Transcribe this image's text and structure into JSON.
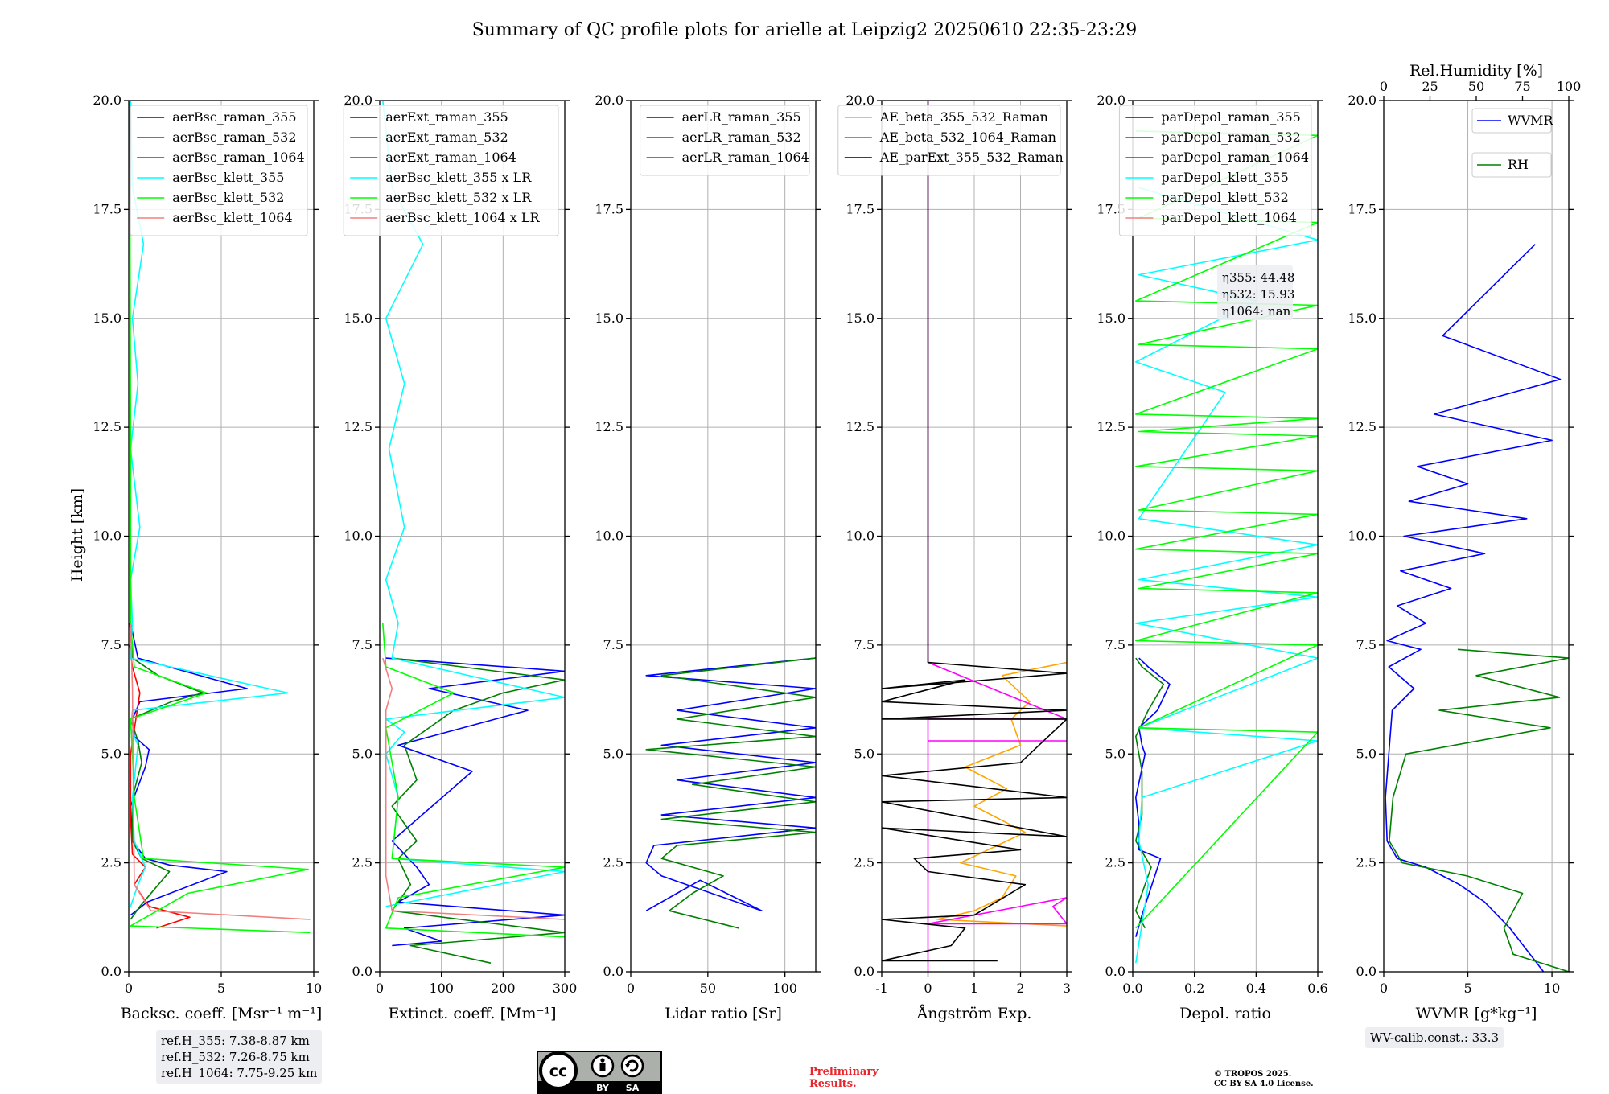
{
  "figure_title": "Summary of QC profile plots for arielle at Leipzig2 20250610 22:35-23:29",
  "y_axis_label": "Height [km]",
  "ref_heights": [
    "ref.H_355: 7.38-8.87 km",
    "ref.H_532: 7.26-8.75 km",
    "ref.H_1064: 7.75-9.25 km"
  ],
  "wv_calib_text": "WV-calib.const.: 33.3",
  "license_badge": {
    "by": "BY",
    "sa": "SA"
  },
  "preliminary_text": [
    "Preliminary",
    "Results."
  ],
  "copyright_text": [
    "© TROPOS 2025.",
    "CC BY SA 4.0 License."
  ],
  "depol_stats": [
    "η355: 44.48",
    "η532: 15.93",
    "η1064: nan"
  ],
  "colors": {
    "blue": "#0000ff",
    "green": "#008000",
    "red": "#ff0000",
    "cyan": "#00ffff",
    "lime": "#00ff00",
    "salmon": "#f08080",
    "orange": "#ffa500",
    "magenta": "#ff00ff",
    "black": "#000000"
  },
  "chart_data": [
    {
      "type": "line",
      "id": "backscatter",
      "xlabel": "Backsc. coeff. [Msr⁻¹ m⁻¹]",
      "ylabel": "Height [km]",
      "xlim": [
        0,
        10
      ],
      "ylim": [
        0,
        20
      ],
      "xticks": [
        0,
        5,
        10
      ],
      "yticks": [
        0,
        2.5,
        5,
        7.5,
        10,
        12.5,
        15,
        17.5,
        20
      ],
      "legend_position": "top-right",
      "series": [
        {
          "name": "aerBsc_raman_355",
          "color": "#0000ff",
          "x": [
            0.1,
            1.0,
            5.3,
            2.2,
            0.9,
            0.2,
            0.1,
            0.9,
            1.1,
            0.3,
            0.2,
            0.6,
            6.4,
            3.0,
            0.5,
            0.1
          ],
          "y": [
            1.3,
            1.6,
            2.3,
            2.45,
            2.6,
            3.0,
            3.8,
            4.7,
            5.1,
            5.4,
            5.8,
            6.2,
            6.5,
            6.9,
            7.2,
            8.0
          ]
        },
        {
          "name": "aerBsc_raman_532",
          "color": "#008000",
          "x": [
            0.1,
            0.6,
            2.2,
            0.7,
            0.2,
            0.2,
            0.7,
            0.5,
            0.1,
            2.3,
            4.0,
            1.6,
            0.2,
            0.05
          ],
          "y": [
            1.2,
            1.5,
            2.3,
            2.6,
            3.0,
            4.0,
            4.8,
            5.3,
            5.8,
            6.2,
            6.4,
            6.8,
            7.2,
            8.0
          ]
        },
        {
          "name": "aerBsc_raman_1064",
          "color": "#ff0000",
          "x": [
            1.5,
            3.3,
            1.1,
            0.3,
            0.9,
            0.2,
            0.1,
            0.1,
            0.6,
            0.2,
            0.05
          ],
          "y": [
            1.0,
            1.25,
            1.5,
            2.0,
            2.4,
            2.7,
            3.5,
            5.0,
            6.4,
            7.0,
            7.5
          ]
        },
        {
          "name": "aerBsc_klett_355",
          "color": "#00ffff",
          "x": [
            0.1,
            0.5,
            0.9,
            0.3,
            0.2,
            0.5,
            0.1,
            0.2,
            8.6,
            0.1,
            0.2,
            0.1,
            0.6,
            0.1,
            0.5,
            0.2,
            0.8,
            0.2,
            0.1
          ],
          "y": [
            1.5,
            2.0,
            2.4,
            3.0,
            4.0,
            5.2,
            5.6,
            6.0,
            6.4,
            7.2,
            8.0,
            9.0,
            10.2,
            12.0,
            13.5,
            15.0,
            16.7,
            18.0,
            20.0
          ]
        },
        {
          "name": "aerBsc_klett_532",
          "color": "#00ff00",
          "x": [
            9.8,
            0.1,
            3.2,
            9.7,
            0.8,
            0.3,
            0.2,
            0.1,
            4.2,
            0.3,
            0.1,
            0.1,
            0.05
          ],
          "y": [
            0.9,
            1.05,
            1.8,
            2.35,
            2.6,
            4.0,
            5.0,
            5.8,
            6.4,
            7.0,
            8.0,
            12.0,
            20.0
          ]
        },
        {
          "name": "aerBsc_klett_1064",
          "color": "#f08080",
          "x": [
            9.8,
            1.2,
            0.3,
            0.2,
            0.1
          ],
          "y": [
            1.2,
            1.4,
            2.0,
            6.5,
            8.0
          ]
        }
      ]
    },
    {
      "type": "line",
      "id": "extinction",
      "xlabel": "Extinct. coeff. [Mm⁻¹]",
      "ylabel": "",
      "xlim": [
        0,
        300
      ],
      "ylim": [
        0,
        20
      ],
      "xticks": [
        0,
        100,
        200,
        300
      ],
      "yticks": [
        0,
        2.5,
        5,
        7.5,
        10,
        12.5,
        15,
        17.5,
        20
      ],
      "legend_position": "top-right",
      "series": [
        {
          "name": "aerExt_raman_355",
          "color": "#0000ff",
          "x": [
            20,
            100,
            40,
            300,
            30,
            80,
            60,
            20,
            150,
            30,
            240,
            80,
            300,
            10
          ],
          "y": [
            0.6,
            0.7,
            1.0,
            1.3,
            1.6,
            2.0,
            2.4,
            3.0,
            4.6,
            5.2,
            6.0,
            6.5,
            6.9,
            7.2
          ]
        },
        {
          "name": "aerExt_raman_532",
          "color": "#008000",
          "x": [
            180,
            50,
            300,
            20,
            50,
            30,
            60,
            20,
            60,
            40,
            120,
            200,
            300,
            20
          ],
          "y": [
            0.2,
            0.6,
            0.9,
            1.4,
            2.0,
            2.6,
            3.0,
            3.8,
            4.4,
            5.2,
            6.0,
            6.4,
            6.7,
            7.2
          ]
        },
        {
          "name": "aerExt_raman_1064",
          "color": "#ff0000",
          "x": [],
          "y": []
        },
        {
          "name": "aerBsc_klett_355 x LR",
          "color": "#00ffff",
          "x": [
            10,
            300,
            20,
            30,
            10,
            40,
            10,
            300,
            20,
            30,
            10,
            40,
            15,
            40,
            10,
            70,
            20,
            5
          ],
          "y": [
            1.5,
            2.3,
            2.6,
            4.0,
            5.0,
            5.5,
            5.8,
            6.3,
            7.2,
            8.0,
            9.0,
            10.2,
            12.0,
            13.5,
            15.0,
            16.7,
            18.0,
            20.0
          ]
        },
        {
          "name": "aerBsc_klett_532 x LR",
          "color": "#00ff00",
          "x": [
            300,
            10,
            30,
            300,
            20,
            30,
            10,
            120,
            10,
            5
          ],
          "y": [
            0.8,
            1.0,
            1.7,
            2.4,
            2.6,
            4.0,
            5.6,
            6.4,
            7.0,
            8.0
          ]
        },
        {
          "name": "aerBsc_klett_1064 x LR",
          "color": "#f08080",
          "x": [
            300,
            20,
            10,
            10,
            20,
            5
          ],
          "y": [
            1.2,
            1.4,
            2.2,
            6.0,
            6.5,
            7.2
          ]
        }
      ]
    },
    {
      "type": "line",
      "id": "lidar_ratio",
      "xlabel": "Lidar ratio [Sr]",
      "ylabel": "",
      "xlim": [
        0,
        120
      ],
      "ylim": [
        0,
        20
      ],
      "xticks": [
        0,
        50,
        100
      ],
      "yticks": [
        0,
        2.5,
        5,
        7.5,
        10,
        12.5,
        15,
        17.5,
        20
      ],
      "legend_position": "top-right",
      "series": [
        {
          "name": "aerLR_raman_355",
          "color": "#0000ff",
          "x": [
            10,
            30,
            45,
            85,
            20,
            10,
            15,
            120,
            20,
            120,
            30,
            120,
            20,
            120,
            30,
            120,
            10,
            120
          ],
          "y": [
            1.4,
            1.8,
            2.1,
            1.4,
            2.2,
            2.5,
            2.9,
            3.3,
            3.6,
            4.0,
            4.4,
            4.8,
            5.2,
            5.6,
            6.0,
            6.5,
            6.8,
            7.2
          ]
        },
        {
          "name": "aerLR_raman_532",
          "color": "#008000",
          "x": [
            70,
            25,
            40,
            60,
            20,
            30,
            120,
            20,
            120,
            40,
            120,
            10,
            120,
            30,
            120,
            20,
            120
          ],
          "y": [
            1.0,
            1.4,
            1.8,
            2.2,
            2.6,
            2.9,
            3.2,
            3.5,
            3.9,
            4.3,
            4.7,
            5.1,
            5.4,
            5.8,
            6.3,
            6.8,
            7.2
          ]
        },
        {
          "name": "aerLR_raman_1064",
          "color": "#ff0000",
          "x": [],
          "y": []
        }
      ]
    },
    {
      "type": "line",
      "id": "angstrom",
      "xlabel": "Ångström Exp.",
      "ylabel": "",
      "xlim": [
        -1,
        3
      ],
      "ylim": [
        0,
        20
      ],
      "xticks": [
        -1,
        0,
        1,
        2,
        3
      ],
      "yticks": [
        0,
        2.5,
        5,
        7.5,
        10,
        12.5,
        15,
        17.5,
        20
      ],
      "legend_position": "top-right",
      "series": [
        {
          "name": "AE_beta_355_532_Raman",
          "color": "#ffa500",
          "x": [
            3.0,
            0.2,
            1.0,
            1.6,
            1.9,
            0.7,
            2.1,
            1.0,
            1.7,
            0.8,
            2.0,
            1.8,
            2.2,
            1.6,
            3.0
          ],
          "y": [
            1.05,
            1.2,
            1.4,
            1.7,
            2.2,
            2.5,
            3.2,
            3.8,
            4.2,
            4.7,
            5.2,
            5.8,
            6.2,
            6.8,
            7.1
          ]
        },
        {
          "name": "AE_beta_532_1064_Raman",
          "color": "#ff00ff",
          "x": [
            0.0,
            0.0,
            3.0,
            2.7,
            3.0,
            0.0,
            0.0,
            3.0,
            0.0,
            0.0,
            3.0,
            0.0,
            0.0
          ],
          "y": [
            0.0,
            1.1,
            1.1,
            1.5,
            1.7,
            1.1,
            5.3,
            5.3,
            5.3,
            5.8,
            5.8,
            7.1,
            20.0
          ]
        },
        {
          "name": "AE_parExt_355_532_Raman",
          "color": "#000000",
          "x": [
            1.5,
            -1.0,
            0.5,
            0.8,
            -1.0,
            1.0,
            2.1,
            0.0,
            -0.3,
            2.0,
            -1.0,
            3.0,
            -1.0,
            3.0,
            -1.0,
            2.0,
            3.0,
            -1.0,
            3.0,
            -1.0,
            0.8,
            -1.0,
            3.0,
            0.0,
            0.0
          ],
          "y": [
            0.25,
            0.25,
            0.6,
            1.0,
            1.2,
            1.3,
            2.0,
            2.3,
            2.6,
            2.8,
            3.3,
            3.1,
            3.9,
            4.0,
            4.5,
            4.8,
            5.8,
            5.8,
            6.0,
            6.2,
            6.7,
            6.5,
            6.85,
            7.1,
            20.0
          ]
        }
      ]
    },
    {
      "type": "line",
      "id": "depolarization",
      "xlabel": "Depol. ratio",
      "ylabel": "",
      "xlim": [
        0,
        0.6
      ],
      "ylim": [
        0,
        20
      ],
      "xticks": [
        0.0,
        0.2,
        0.4,
        0.6
      ],
      "yticks": [
        0,
        2.5,
        5,
        7.5,
        10,
        12.5,
        15,
        17.5,
        20
      ],
      "legend_position": "top-right",
      "series": [
        {
          "name": "parDepol_raman_355",
          "color": "#0000ff",
          "x": [
            0.01,
            0.03,
            0.09,
            0.02,
            0.02,
            0.01,
            0.04,
            0.03,
            0.02,
            0.08,
            0.12,
            0.05,
            0.02
          ],
          "y": [
            0.8,
            1.3,
            2.6,
            2.8,
            3.4,
            4.0,
            5.0,
            5.2,
            5.6,
            6.0,
            6.6,
            7.0,
            7.2
          ]
        },
        {
          "name": "parDepol_raman_532",
          "color": "#008000",
          "x": [
            0.04,
            0.01,
            0.06,
            0.01,
            0.03,
            0.03,
            0.01,
            0.05,
            0.1,
            0.03,
            0.01
          ],
          "y": [
            1.0,
            1.4,
            2.4,
            3.0,
            3.6,
            4.6,
            5.4,
            6.0,
            6.6,
            7.0,
            7.2
          ]
        },
        {
          "name": "parDepol_raman_1064",
          "color": "#ff0000",
          "x": [],
          "y": []
        },
        {
          "name": "parDepol_klett_355",
          "color": "#00ffff",
          "x": [
            0.01,
            0.05,
            0.02,
            0.03,
            0.6,
            0.02,
            0.6,
            0.01,
            0.6,
            0.02,
            0.6,
            0.02,
            0.3,
            0.01,
            0.4,
            0.02,
            0.6,
            0.02
          ],
          "y": [
            0.2,
            2.0,
            3.0,
            4.0,
            5.3,
            5.6,
            7.2,
            8.0,
            8.6,
            9.0,
            9.8,
            10.4,
            13.3,
            14.0,
            15.4,
            16.0,
            16.8,
            18.0
          ]
        },
        {
          "name": "parDepol_klett_532",
          "color": "#00ff00",
          "x": [
            0.01,
            0.6,
            0.02,
            0.6,
            0.01,
            0.6,
            0.02,
            0.6,
            0.01,
            0.6,
            0.02,
            0.6,
            0.01,
            0.6,
            0.02,
            0.6,
            0.01,
            0.6,
            0.02,
            0.6,
            0.01,
            0.6,
            0.02,
            0.6,
            0.01
          ],
          "y": [
            1.0,
            5.5,
            5.6,
            7.5,
            7.6,
            8.7,
            8.8,
            9.6,
            9.7,
            10.5,
            10.6,
            11.5,
            11.6,
            12.3,
            12.4,
            12.7,
            12.8,
            14.3,
            14.4,
            15.3,
            15.4,
            17.2,
            17.3,
            19.2,
            19.3
          ]
        },
        {
          "name": "parDepol_klett_1064",
          "color": "#f08080",
          "x": [],
          "y": []
        }
      ]
    },
    {
      "type": "line",
      "id": "water_vapor",
      "xlabel": "WVMR [g*kg⁻¹]",
      "ylabel": "",
      "x2label": "Rel.Humidity [%]",
      "xlim": [
        0,
        11
      ],
      "x2lim": [
        0,
        100
      ],
      "ylim": [
        0,
        20
      ],
      "xticks": [
        0,
        5,
        10
      ],
      "x2ticks": [
        0,
        25,
        50,
        75,
        100
      ],
      "yticks": [
        0,
        2.5,
        5,
        7.5,
        10,
        12.5,
        15,
        17.5,
        20
      ],
      "legend_position": "top-right",
      "series": [
        {
          "name": "WVMR",
          "color": "#0000ff",
          "x": [
            9.5,
            7.5,
            6.0,
            4.5,
            2.5,
            0.8,
            0.2,
            0.1,
            0.3,
            0.5,
            1.8,
            0.3,
            2.2,
            0.2,
            2.5,
            0.8,
            4.0,
            1.0,
            6.0,
            1.2,
            8.5,
            1.5,
            5.0,
            2.0,
            10.0,
            3.0,
            10.5,
            3.5,
            9.0
          ],
          "y": [
            0.0,
            1.0,
            1.6,
            2.0,
            2.4,
            2.6,
            3.0,
            4.0,
            5.0,
            6.0,
            6.5,
            7.0,
            7.4,
            7.6,
            8.0,
            8.4,
            8.8,
            9.2,
            9.6,
            10.0,
            10.4,
            10.8,
            11.2,
            11.6,
            12.2,
            12.8,
            13.6,
            14.6,
            16.7
          ]
        },
        {
          "name": "RH",
          "color": "#008000",
          "axis": "x2",
          "x": [
            100,
            70,
            65,
            75,
            45,
            10,
            3,
            5,
            12,
            90,
            30,
            95,
            50,
            100,
            40
          ],
          "y": [
            0.0,
            0.4,
            1.0,
            1.8,
            2.2,
            2.5,
            3.0,
            4.0,
            5.0,
            5.6,
            6.0,
            6.3,
            6.8,
            7.2,
            7.4
          ]
        }
      ]
    }
  ]
}
